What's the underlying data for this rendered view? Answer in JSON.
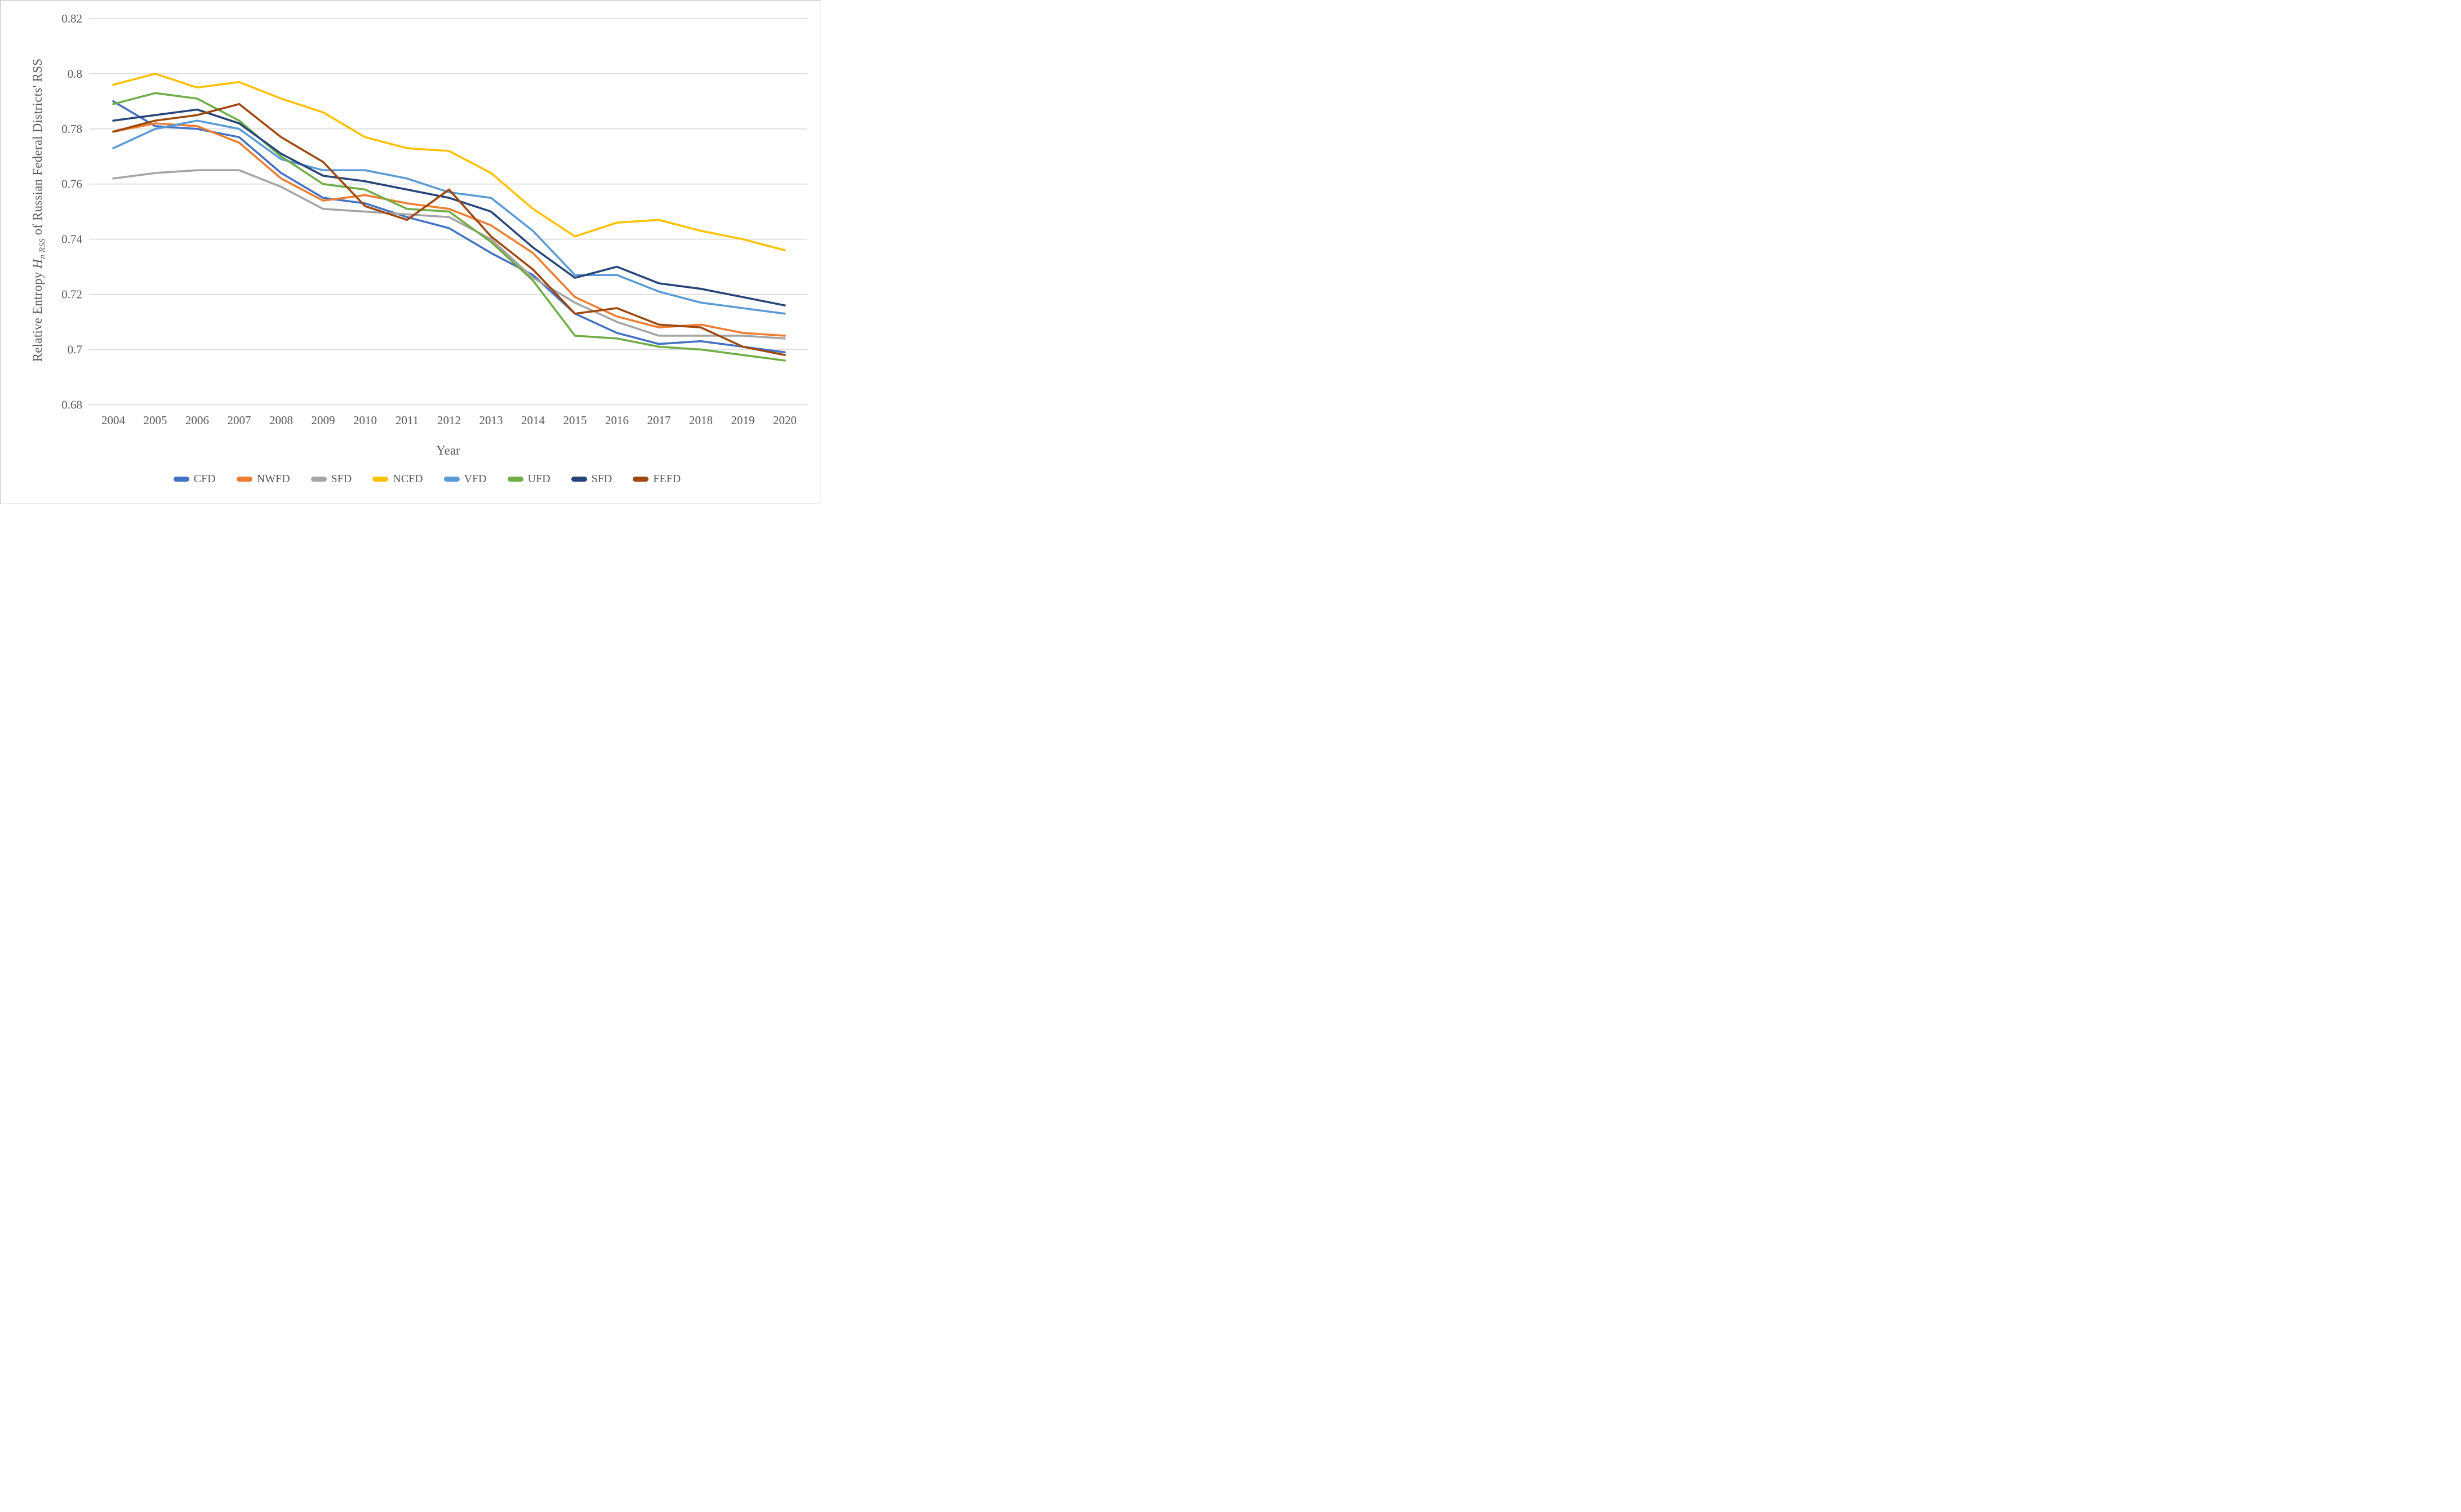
{
  "figure": {
    "background": "#ffffff",
    "border_color": "#bfbfbf",
    "grid_color": "#d9d9d9",
    "text_color": "#595959"
  },
  "y_axis": {
    "title_prefix": "Relative Entropy ",
    "title_symbol": "H",
    "title_subscript": "n RSS",
    "title_suffix": " of Russian Federal Districts' RSS",
    "tick_labels": [
      "0.82",
      "0.8",
      "0.78",
      "0.76",
      "0.74",
      "0.72",
      "0.7",
      "0.68"
    ],
    "tick_values": [
      0.82,
      0.8,
      0.78,
      0.76,
      0.74,
      0.72,
      0.7,
      0.68
    ]
  },
  "x_axis": {
    "title": "Year",
    "tick_labels": [
      "2004",
      "2005",
      "2006",
      "2007",
      "2008",
      "2009",
      "2010",
      "2011",
      "2012",
      "2013",
      "2014",
      "2015",
      "2016",
      "2017",
      "2018",
      "2019",
      "2020"
    ]
  },
  "chart_data": {
    "type": "line",
    "title": "",
    "xlabel": "Year",
    "ylabel": "Relative Entropy H_n RSS of Russian Federal Districts' RSS",
    "ylim": [
      0.68,
      0.82
    ],
    "y_tick_step": 0.02,
    "grid": "horizontal",
    "legend_position": "bottom",
    "x": [
      2004,
      2005,
      2006,
      2007,
      2008,
      2009,
      2010,
      2011,
      2012,
      2013,
      2014,
      2015,
      2016,
      2017,
      2018,
      2019,
      2020
    ],
    "series": [
      {
        "name": "CFD",
        "color": "#4472C4",
        "values": [
          0.79,
          0.781,
          0.78,
          0.777,
          0.764,
          0.755,
          0.753,
          0.748,
          0.744,
          0.735,
          0.727,
          0.713,
          0.706,
          0.702,
          0.703,
          0.701,
          0.699
        ]
      },
      {
        "name": "NWFD",
        "color": "#ED7D31",
        "values": [
          0.779,
          0.782,
          0.781,
          0.775,
          0.762,
          0.754,
          0.756,
          0.753,
          0.751,
          0.745,
          0.735,
          0.719,
          0.712,
          0.708,
          0.709,
          0.706,
          0.705
        ]
      },
      {
        "name": "SFD",
        "color": "#A5A5A5",
        "values": [
          0.762,
          0.764,
          0.765,
          0.765,
          0.759,
          0.751,
          0.75,
          0.749,
          0.748,
          0.74,
          0.726,
          0.717,
          0.71,
          0.705,
          0.705,
          0.705,
          0.704
        ]
      },
      {
        "name": "NCFD",
        "color": "#FFC000",
        "values": [
          0.796,
          0.8,
          0.795,
          0.797,
          0.791,
          0.786,
          0.777,
          0.773,
          0.772,
          0.764,
          0.751,
          0.741,
          0.746,
          0.747,
          0.743,
          0.74,
          0.736
        ]
      },
      {
        "name": "VFD",
        "color": "#5B9BD5",
        "values": [
          0.773,
          0.78,
          0.783,
          0.78,
          0.769,
          0.765,
          0.765,
          0.762,
          0.757,
          0.755,
          0.743,
          0.727,
          0.727,
          0.721,
          0.717,
          0.715,
          0.713
        ]
      },
      {
        "name": "UFD",
        "color": "#70AD47",
        "values": [
          0.789,
          0.793,
          0.791,
          0.783,
          0.77,
          0.76,
          0.758,
          0.751,
          0.75,
          0.739,
          0.725,
          0.705,
          0.704,
          0.701,
          0.7,
          0.698,
          0.696
        ]
      },
      {
        "name": "SFD",
        "color": "#264478",
        "values": [
          0.783,
          0.785,
          0.787,
          0.782,
          0.771,
          0.763,
          0.761,
          0.758,
          0.755,
          0.75,
          0.737,
          0.726,
          0.73,
          0.724,
          0.722,
          0.719,
          0.716
        ]
      },
      {
        "name": "FEFD",
        "color": "#9E480E",
        "values": [
          0.779,
          0.783,
          0.785,
          0.789,
          0.777,
          0.768,
          0.752,
          0.747,
          0.758,
          0.741,
          0.729,
          0.713,
          0.715,
          0.709,
          0.708,
          0.701,
          0.698
        ]
      }
    ]
  }
}
